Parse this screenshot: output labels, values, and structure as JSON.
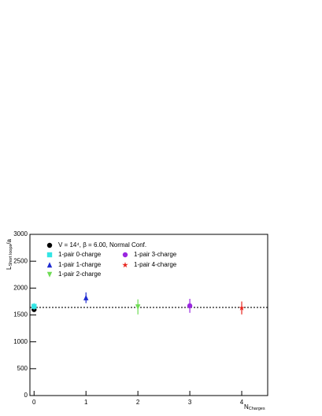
{
  "chart_data": {
    "type": "scatter",
    "x_label": {
      "main": "N",
      "sub": "Charges"
    },
    "y_label": {
      "main": "L",
      "sub": "Short loops",
      "suffix": "/a"
    },
    "xlim": [
      -0.08,
      4.5
    ],
    "ylim": [
      0,
      3000
    ],
    "xticks": [
      0,
      1,
      2,
      3,
      4
    ],
    "yticks": [
      0,
      500,
      1000,
      1500,
      2000,
      2500,
      3000
    ],
    "reference_line": 1640,
    "series": [
      {
        "name": "V = 14⁴, β = 6.00, Normal Conf.",
        "color": "#000000",
        "marker": "circle",
        "x": [
          0
        ],
        "values": [
          1600
        ],
        "errors": [
          40
        ]
      },
      {
        "name": "1-pair 0-charge",
        "color": "#33e5e5",
        "marker": "square",
        "x": [
          0
        ],
        "values": [
          1660
        ],
        "errors": [
          60
        ]
      },
      {
        "name": "1-pair 1-charge",
        "color": "#1f2bd1",
        "marker": "triangle-up",
        "x": [
          1
        ],
        "values": [
          1820
        ],
        "errors": [
          100
        ]
      },
      {
        "name": "1-pair 2-charge",
        "color": "#6fdc55",
        "marker": "triangle-down",
        "x": [
          2
        ],
        "values": [
          1650
        ],
        "errors": [
          140
        ]
      },
      {
        "name": "1-pair 3-charge",
        "color": "#9a26e0",
        "marker": "circle",
        "x": [
          3
        ],
        "values": [
          1670
        ],
        "errors": [
          130
        ]
      },
      {
        "name": "1-pair 4-charge",
        "color": "#e8231c",
        "marker": "star",
        "x": [
          4
        ],
        "values": [
          1630
        ],
        "errors": [
          120
        ]
      }
    ]
  }
}
